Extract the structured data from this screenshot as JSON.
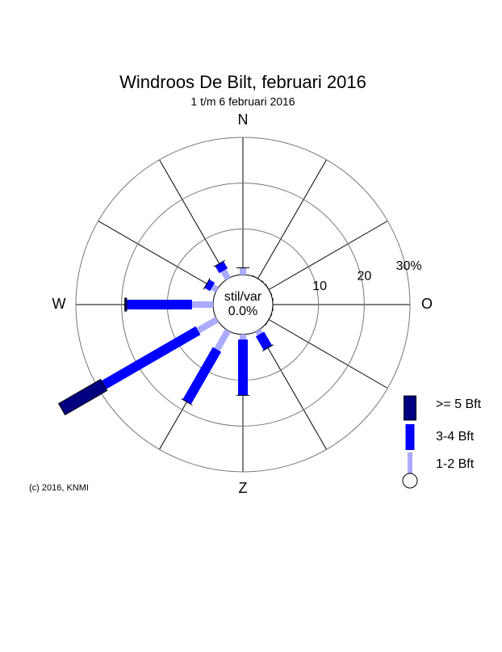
{
  "chart_data": {
    "type": "windrose",
    "title": "Windroos De Bilt, februari 2016",
    "subtitle": "1 t/m 6 februari 2016",
    "calm_label": "stil/var",
    "calm_value": 0.0,
    "calm_value_label": "0.0%",
    "x": [
      0,
      30,
      60,
      90,
      120,
      150,
      180,
      210,
      240,
      270,
      300,
      330
    ],
    "compass_labels": [
      {
        "angle": 0,
        "label": "N"
      },
      {
        "angle": 90,
        "label": "O"
      },
      {
        "angle": 180,
        "label": "Z"
      },
      {
        "angle": 270,
        "label": "W"
      }
    ],
    "rlim": [
      0,
      30
    ],
    "rticks": [
      10,
      20,
      {
        "value": 30,
        "label": "30%"
      }
    ],
    "series": [
      {
        "name": "1-2 Bft",
        "color": "#aaaaff",
        "values": [
          1.5,
          0,
          0,
          0,
          0,
          0.9,
          1.1,
          4.8,
          4.8,
          4.6,
          1.2,
          2
        ]
      },
      {
        "name": "3-4 Bft",
        "color": "#0000ff",
        "values": [
          0,
          0,
          0,
          0,
          0,
          3.5,
          12.2,
          13.2,
          23.8,
          14.3,
          1.4,
          1.8
        ]
      },
      {
        "name": ">= 5 Bft",
        "color": "#000080",
        "values": [
          0,
          0,
          0,
          0,
          0,
          0,
          0,
          0,
          10.6,
          0.4,
          0,
          0
        ]
      }
    ],
    "footnote": "(c) 2016, KNMI"
  }
}
